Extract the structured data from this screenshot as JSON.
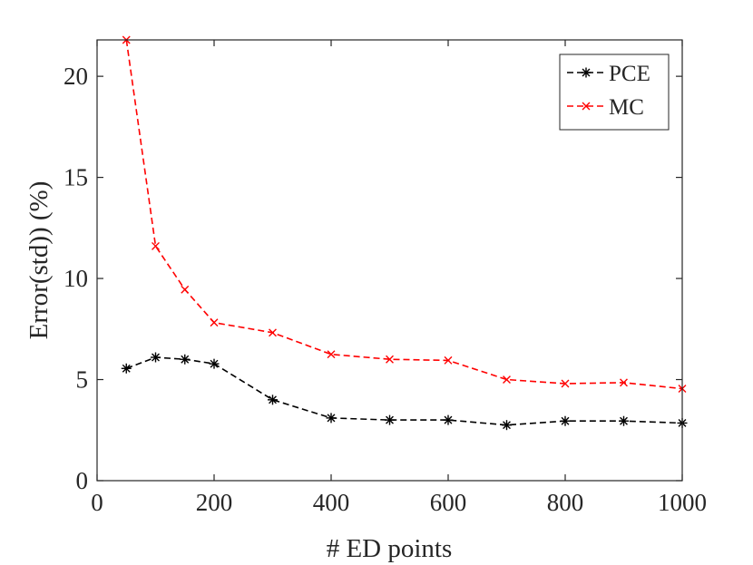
{
  "chart_data": {
    "type": "line",
    "title": "",
    "xlabel": "# ED points",
    "ylabel": "Error(std)) (%)",
    "xlim": [
      0,
      1000
    ],
    "ylim": [
      0,
      21.8
    ],
    "xticks": [
      0,
      200,
      400,
      600,
      800,
      1000
    ],
    "yticks": [
      0,
      5,
      10,
      15,
      20
    ],
    "x": [
      50,
      100,
      150,
      200,
      300,
      400,
      500,
      600,
      700,
      800,
      900,
      1000
    ],
    "series": [
      {
        "name": "PCE",
        "color": "#000000",
        "marker": "asterisk",
        "linestyle": "dashed",
        "values": [
          5.55,
          6.1,
          6.0,
          5.78,
          4.0,
          3.1,
          3.0,
          3.0,
          2.75,
          2.95,
          2.95,
          2.85
        ]
      },
      {
        "name": "MC",
        "color": "#ff0000",
        "marker": "x",
        "linestyle": "dashed",
        "values": [
          21.8,
          11.6,
          9.45,
          7.82,
          7.32,
          6.25,
          6.0,
          5.95,
          5.0,
          4.8,
          4.85,
          4.55
        ]
      }
    ],
    "legend": {
      "position": "top-right",
      "entries": [
        "PCE",
        "MC"
      ]
    },
    "grid": false
  }
}
